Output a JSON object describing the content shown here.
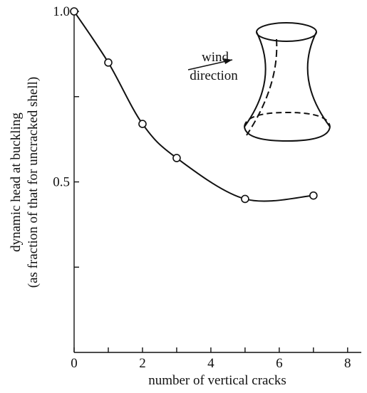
{
  "chart_data": {
    "type": "line",
    "xlabel": "number of vertical cracks",
    "ylabel": [
      "dynamic head at buckling",
      "(as fraction of that for uncracked shell)"
    ],
    "annotation": [
      "wind",
      "direction"
    ],
    "x": [
      0,
      1,
      2,
      3,
      5,
      7
    ],
    "series": [
      {
        "values": [
          1.0,
          0.85,
          0.67,
          0.57,
          0.45,
          0.46
        ],
        "color": "#111111"
      }
    ],
    "xlim": [
      0,
      8.4
    ],
    "ylim": [
      0,
      1.0
    ],
    "xticks": [
      0,
      2,
      4,
      6,
      8
    ],
    "x_minor_ticks": [
      1,
      3,
      5,
      7
    ],
    "yticks": [
      0.5,
      {
        "value": 1,
        "label": "1.0"
      }
    ],
    "y_minor_ticks": [
      0.25,
      0.75
    ]
  }
}
